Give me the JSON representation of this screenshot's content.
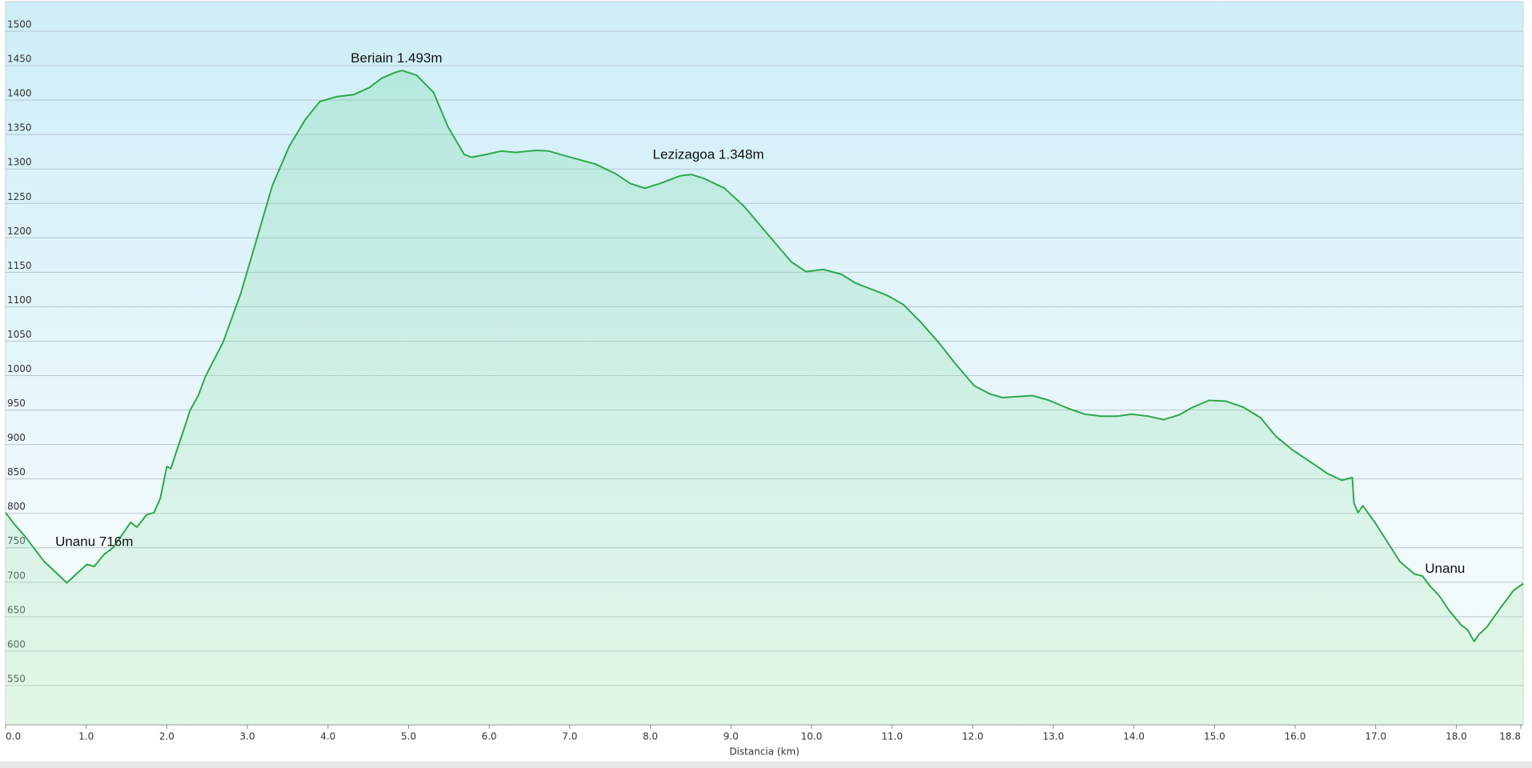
{
  "chart_data": {
    "type": "area",
    "x_label": "Distancia  (km)",
    "x": [
      0.0,
      0.11,
      0.23,
      0.48,
      0.67,
      0.76,
      0.85,
      1.01,
      1.1,
      1.22,
      1.34,
      1.47,
      1.55,
      1.63,
      1.75,
      1.84,
      1.92,
      2.0,
      2.05,
      2.12,
      2.21,
      2.29,
      2.39,
      2.48,
      2.7,
      2.92,
      3.15,
      3.31,
      3.52,
      3.72,
      3.9,
      4.11,
      4.32,
      4.51,
      4.67,
      4.83,
      4.92,
      5.1,
      5.31,
      5.49,
      5.69,
      5.78,
      5.96,
      6.15,
      6.33,
      6.58,
      6.74,
      6.95,
      7.32,
      7.57,
      7.75,
      7.93,
      8.12,
      8.37,
      8.51,
      8.67,
      8.92,
      9.17,
      9.48,
      9.75,
      9.93,
      10.15,
      10.37,
      10.55,
      10.93,
      11.14,
      11.36,
      11.57,
      11.78,
      12.02,
      12.22,
      12.37,
      12.74,
      12.95,
      13.17,
      13.39,
      13.6,
      13.79,
      13.97,
      14.18,
      14.37,
      14.56,
      14.71,
      14.93,
      15.14,
      15.36,
      15.57,
      15.76,
      15.97,
      16.25,
      16.4,
      16.58,
      16.71,
      16.73,
      16.78,
      16.84,
      16.99,
      17.3,
      17.48,
      17.58,
      17.67,
      17.79,
      17.91,
      18.06,
      18.14,
      18.22,
      18.28,
      18.38,
      18.55,
      18.71,
      18.83
    ],
    "series": [
      {
        "color": "#2ea84a",
        "values": [
          801,
          784,
          768,
          730,
          709,
          699,
          709,
          726,
          723,
          740,
          751,
          773,
          787,
          780,
          798,
          801,
          822,
          868,
          865,
          890,
          921,
          950,
          971,
          999,
          1049,
          1120,
          1212,
          1276,
          1333,
          1372,
          1398,
          1405,
          1408,
          1418,
          1432,
          1440,
          1443,
          1436,
          1411,
          1361,
          1321,
          1317,
          1321,
          1326,
          1324,
          1327,
          1326,
          1319,
          1307,
          1293,
          1279,
          1272,
          1279,
          1290,
          1292,
          1286,
          1272,
          1245,
          1202,
          1165,
          1151,
          1154,
          1147,
          1134,
          1117,
          1103,
          1077,
          1049,
          1018,
          985,
          973,
          968,
          971,
          964,
          953,
          944,
          941,
          941,
          944,
          941,
          936,
          943,
          953,
          964,
          963,
          954,
          939,
          912,
          892,
          870,
          858,
          848,
          852,
          815,
          801,
          811,
          787,
          730,
          712,
          709,
          695,
          680,
          659,
          638,
          631,
          614,
          624,
          635,
          663,
          688,
          698
        ]
      }
    ],
    "xlim": [
      0,
      18.83
    ],
    "ylim": [
      493,
      1543
    ],
    "xticks": [
      {
        "value": 0,
        "label": "0.0"
      },
      {
        "value": 1,
        "label": "1.0"
      },
      {
        "value": 2,
        "label": "2.0"
      },
      {
        "value": 3,
        "label": "3.0"
      },
      {
        "value": 4,
        "label": "4.0"
      },
      {
        "value": 5,
        "label": "5.0"
      },
      {
        "value": 6,
        "label": "6.0"
      },
      {
        "value": 7,
        "label": "7.0"
      },
      {
        "value": 8,
        "label": "8.0"
      },
      {
        "value": 9,
        "label": "9.0"
      },
      {
        "value": 10,
        "label": "10.0"
      },
      {
        "value": 11,
        "label": "11.0"
      },
      {
        "value": 12,
        "label": "12.0"
      },
      {
        "value": 13,
        "label": "13.0"
      },
      {
        "value": 14,
        "label": "14.0"
      },
      {
        "value": 15,
        "label": "15.0"
      },
      {
        "value": 16,
        "label": "16.0"
      },
      {
        "value": 17,
        "label": "17.0"
      },
      {
        "value": 18,
        "label": "18.0"
      },
      {
        "value": 18.8,
        "label": "18.8"
      }
    ],
    "yticks": [
      550,
      600,
      650,
      700,
      750,
      800,
      850,
      900,
      950,
      1000,
      1050,
      1100,
      1150,
      1200,
      1250,
      1300,
      1350,
      1400,
      1450,
      1500
    ],
    "grid": true,
    "annotations": [
      {
        "text": "Unanu 716m",
        "x": 1.1,
        "y": 758
      },
      {
        "text": "Beriain 1.493m",
        "x": 4.85,
        "y": 1460
      },
      {
        "text": "Lezizagoa 1.348m",
        "x": 8.72,
        "y": 1320
      },
      {
        "text": "Unanu",
        "x": 17.86,
        "y": 719
      }
    ]
  }
}
